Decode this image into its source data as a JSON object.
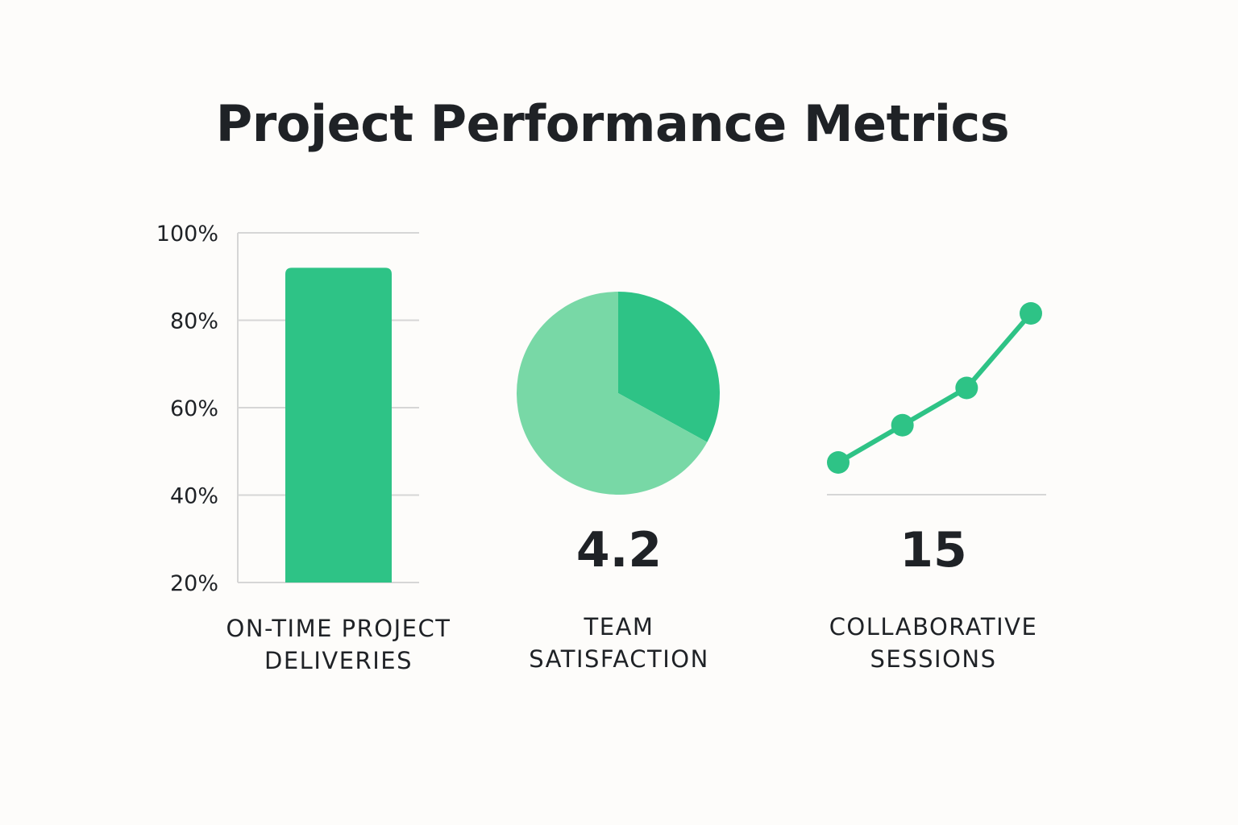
{
  "title": "Project Performance Metrics",
  "colors": {
    "accent": "#2ec386",
    "accent_light": "#78d8a6",
    "grid": "#d6d6d6",
    "text": "#1f2226",
    "background": "#fdfcfa"
  },
  "chart_data": [
    {
      "type": "bar",
      "categories": [
        ""
      ],
      "values": [
        92
      ],
      "ylim": [
        20,
        100
      ],
      "yticks": [
        "100%",
        "80%",
        "60%",
        "40%",
        "20%"
      ],
      "ytick_values": [
        100,
        80,
        60,
        40,
        20
      ],
      "grid": true,
      "label_lines": [
        "ON-TIME PROJECT",
        "DELIVERIES"
      ]
    },
    {
      "type": "pie",
      "values": [
        33,
        67
      ],
      "value_label": "4.2",
      "label_lines": [
        "TEAM",
        "SATISFACTION"
      ]
    },
    {
      "type": "line",
      "x": [
        1,
        2,
        3,
        4
      ],
      "y": [
        2,
        4,
        6,
        10
      ],
      "value_label": "15",
      "label_lines": [
        "COLLABORATIVE",
        "SESSIONS"
      ]
    }
  ]
}
